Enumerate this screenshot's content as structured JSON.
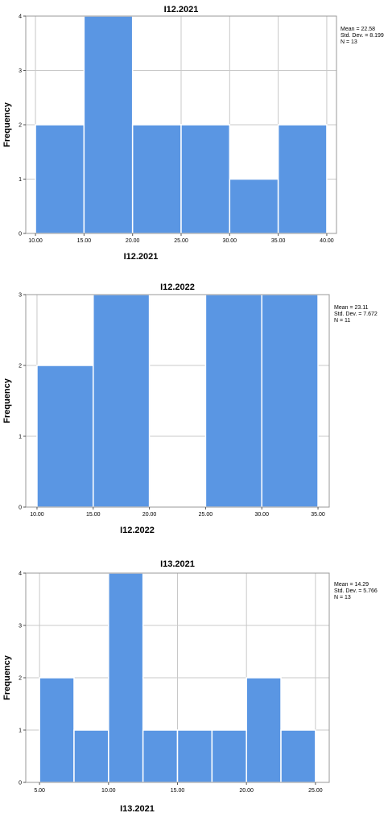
{
  "colors": {
    "bar": "#5a96e3",
    "grid": "#c8c8c8",
    "frame": "#9a9a9a"
  },
  "chart_data": [
    {
      "type": "bar",
      "title": "I12.2021",
      "xlabel": "I12.2021",
      "ylabel": "Frequency",
      "bin_edges": [
        10,
        15,
        20,
        25,
        30,
        35,
        40
      ],
      "values": [
        2,
        4,
        2,
        2,
        1,
        2
      ],
      "x_ticks": [
        "10.00",
        "15.00",
        "20.00",
        "25.00",
        "30.00",
        "35.00",
        "40.00"
      ],
      "xlim": [
        9,
        41
      ],
      "ylim": [
        0,
        4
      ],
      "y_ticks": [
        "0",
        "1",
        "2",
        "3",
        "4"
      ],
      "stats": [
        "Mean = 22.58",
        "Std. Dev. = 8.199",
        "N = 13"
      ],
      "grid": true,
      "legend": "top-right"
    },
    {
      "type": "bar",
      "title": "I12.2022",
      "xlabel": "I12.2022",
      "ylabel": "Frequency",
      "bin_edges": [
        10,
        15,
        20,
        25,
        30,
        35
      ],
      "values": [
        2,
        3,
        0,
        3,
        3
      ],
      "x_ticks": [
        "10.00",
        "15.00",
        "20.00",
        "25.00",
        "30.00",
        "35.00"
      ],
      "xlim": [
        9,
        36
      ],
      "ylim": [
        0,
        3
      ],
      "y_ticks": [
        "0",
        "1",
        "2",
        "3"
      ],
      "stats": [
        "Mean = 23.11",
        "Std. Dev. = 7.672",
        "N = 11"
      ],
      "grid": true,
      "legend": "top-right"
    },
    {
      "type": "bar",
      "title": "I13.2021",
      "xlabel": "I13.2021",
      "ylabel": "Frequency",
      "bin_edges": [
        5,
        7.5,
        10,
        12.5,
        15,
        17.5,
        20,
        22.5,
        25
      ],
      "values": [
        2,
        1,
        4,
        1,
        1,
        1,
        2,
        1
      ],
      "x_ticks": [
        "5.00",
        "10.00",
        "15.00",
        "20.00",
        "25.00"
      ],
      "xlim": [
        4,
        26
      ],
      "ylim": [
        0,
        4
      ],
      "y_ticks": [
        "0",
        "1",
        "2",
        "3",
        "4"
      ],
      "stats": [
        "Mean = 14.29",
        "Std. Dev. = 5.766",
        "N = 13"
      ],
      "grid": true,
      "legend": "top-right"
    }
  ]
}
